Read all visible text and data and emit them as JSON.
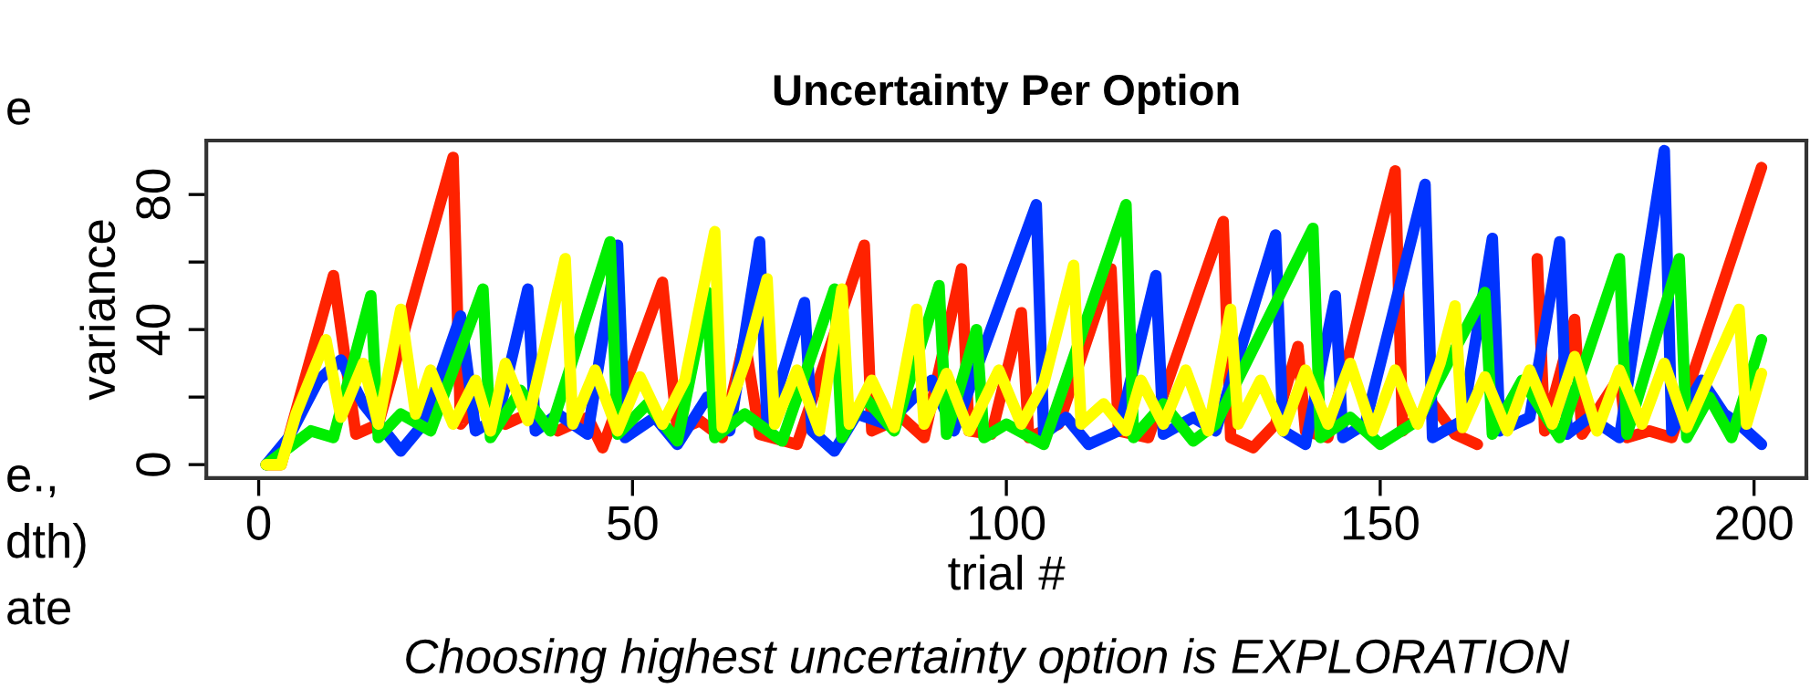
{
  "chart_data": {
    "type": "line",
    "title": "Uncertainty Per Option",
    "xlabel": "trial #",
    "ylabel": "variance",
    "annotations": [
      "e",
      "e.,",
      "dth)",
      "ate",
      "Choosing highest uncertainty option is EXPLORATION"
    ],
    "xlim": [
      -7,
      207
    ],
    "ylim": [
      -4,
      96
    ],
    "xticks": [
      0,
      50,
      100,
      150,
      200
    ],
    "yticks": [
      0,
      {
        "value": 20,
        "label": null
      },
      40,
      {
        "value": 60,
        "label": null
      },
      80
    ],
    "grid": false,
    "legend": false,
    "marker": "none",
    "line_style": "solid",
    "series": [
      {
        "color": "#ff2200",
        "x": [
          1,
          3,
          10,
          13,
          16,
          26,
          27,
          30,
          33,
          36,
          40,
          44,
          46,
          54,
          56,
          59,
          62,
          65,
          67,
          72,
          81,
          82,
          86,
          89,
          94,
          95,
          98,
          102,
          103,
          107,
          114,
          115,
          119,
          129,
          130,
          133,
          136,
          139,
          140,
          143,
          152,
          153,
          157,
          160,
          163,
          166,
          171,
          172,
          176,
          177,
          182,
          183,
          186,
          189,
          201
        ],
        "values": [
          0,
          0,
          56,
          9,
          12,
          91,
          12,
          20,
          12,
          15,
          10,
          14,
          5,
          54,
          10,
          13,
          8,
          37,
          9,
          6,
          65,
          10,
          14,
          8,
          58,
          10,
          9,
          45,
          8,
          12,
          58,
          10,
          8,
          72,
          8,
          5,
          12,
          35,
          10,
          8,
          87,
          10,
          18,
          9,
          6,
          null,
          61,
          10,
          43,
          9,
          26,
          8,
          10,
          8,
          88
        ]
      },
      {
        "color": "#0033ff",
        "x": [
          1,
          4,
          8,
          11,
          14,
          19,
          22,
          27,
          29,
          32,
          36,
          37,
          40,
          44,
          48,
          49,
          53,
          56,
          60,
          63,
          67,
          68,
          73,
          74,
          77,
          80,
          84,
          90,
          93,
          104,
          105,
          108,
          111,
          115,
          120,
          121,
          125,
          128,
          136,
          137,
          140,
          144,
          145,
          148,
          156,
          157,
          161,
          165,
          166,
          170,
          174,
          175,
          178,
          182,
          188,
          189,
          193,
          196,
          198,
          201
        ],
        "values": [
          0,
          8,
          25,
          31,
          18,
          4,
          12,
          44,
          10,
          14,
          52,
          10,
          15,
          9,
          65,
          8,
          14,
          6,
          20,
          10,
          66,
          12,
          48,
          10,
          4,
          15,
          12,
          25,
          10,
          77,
          9,
          14,
          6,
          10,
          56,
          9,
          14,
          10,
          68,
          10,
          6,
          50,
          8,
          12,
          83,
          8,
          13,
          67,
          10,
          14,
          66,
          9,
          14,
          8,
          93,
          10,
          25,
          15,
          12,
          6
        ]
      },
      {
        "color": "#00ee00",
        "x": [
          1,
          4,
          7,
          10,
          15,
          16,
          19,
          23,
          30,
          31,
          35,
          39,
          47,
          48,
          52,
          56,
          60,
          61,
          65,
          70,
          77,
          78,
          81,
          85,
          91,
          92,
          96,
          97,
          100,
          105,
          116,
          117,
          121,
          125,
          128,
          141,
          142,
          146,
          150,
          155,
          164,
          165,
          169,
          174,
          182,
          183,
          190,
          191,
          194,
          197,
          201
        ],
        "values": [
          0,
          5,
          10,
          8,
          50,
          8,
          15,
          10,
          52,
          8,
          22,
          10,
          66,
          9,
          18,
          7,
          51,
          8,
          15,
          7,
          52,
          8,
          20,
          10,
          53,
          9,
          40,
          8,
          12,
          6,
          77,
          8,
          18,
          7,
          12,
          70,
          8,
          14,
          6,
          13,
          51,
          9,
          25,
          8,
          61,
          9,
          61,
          8,
          20,
          8,
          37
        ]
      },
      {
        "color": "#ffff00",
        "x": [
          1,
          3,
          5,
          9,
          11,
          14,
          16,
          19,
          21,
          23,
          26,
          29,
          31,
          33,
          36,
          41,
          42,
          45,
          48,
          51,
          54,
          57,
          61,
          62,
          65,
          68,
          69,
          72,
          75,
          78,
          79,
          82,
          85,
          88,
          89,
          92,
          95,
          99,
          102,
          105,
          109,
          110,
          113,
          116,
          118,
          121,
          124,
          127,
          130,
          131,
          134,
          137,
          140,
          143,
          146,
          149,
          152,
          155,
          158,
          160,
          161,
          164,
          167,
          170,
          173,
          176,
          179,
          182,
          185,
          188,
          191,
          194,
          198,
          199,
          201
        ],
        "values": [
          0,
          0,
          15,
          37,
          14,
          30,
          12,
          46,
          15,
          28,
          12,
          25,
          10,
          30,
          13,
          61,
          12,
          28,
          10,
          26,
          12,
          25,
          69,
          11,
          30,
          55,
          12,
          28,
          10,
          52,
          12,
          25,
          11,
          46,
          12,
          27,
          10,
          28,
          12,
          24,
          59,
          12,
          18,
          10,
          25,
          12,
          28,
          10,
          46,
          12,
          25,
          10,
          28,
          12,
          30,
          10,
          28,
          12,
          30,
          47,
          11,
          26,
          10,
          28,
          12,
          32,
          10,
          28,
          12,
          30,
          11,
          26,
          46,
          12,
          27
        ]
      }
    ]
  }
}
